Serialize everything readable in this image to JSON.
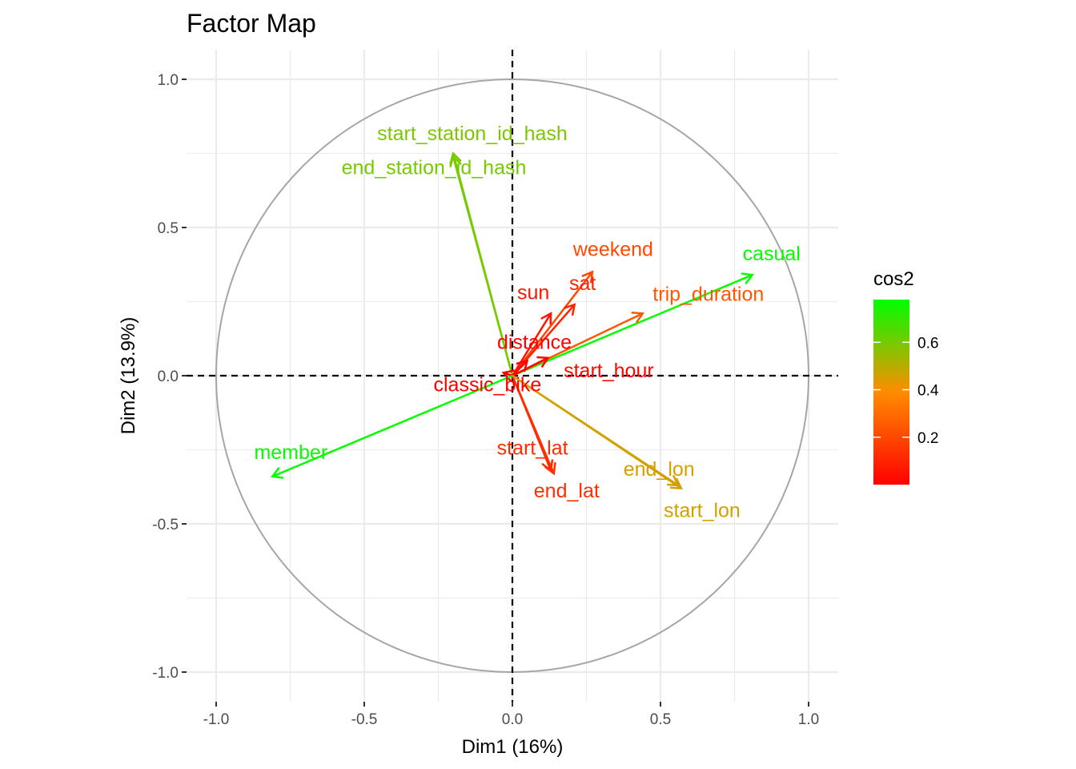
{
  "chart_data": {
    "type": "scatter",
    "subtype": "pca-variable-correlation-circle",
    "title": "Factor Map",
    "xlabel": "Dim1 (16%)",
    "ylabel": "Dim2 (13.9%)",
    "xlim": [
      -1.1,
      1.1
    ],
    "ylim": [
      -1.1,
      1.1
    ],
    "x_ticks": [
      "-1.0",
      "-0.5",
      "0.0",
      "0.5",
      "1.0"
    ],
    "y_ticks": [
      "-1.0",
      "-0.5",
      "0.0",
      "0.5",
      "1.0"
    ],
    "grid": true,
    "unit_circle": true,
    "reference_lines": [
      0,
      0
    ],
    "legend": {
      "title": "cos2",
      "position": "right",
      "ticks": [
        "0.2",
        "0.4",
        "0.6"
      ],
      "range": [
        0.0,
        0.78
      ],
      "low_color": "#ff0000",
      "mid_color": "#ff8c00",
      "high_color": "#00ff00"
    },
    "variables": [
      {
        "name": "start_station_id_hash",
        "x": -0.2,
        "y": 0.74,
        "cos2": 0.59
      },
      {
        "name": "end_station_id_hash",
        "x": -0.2,
        "y": 0.75,
        "cos2": 0.6
      },
      {
        "name": "weekend",
        "x": 0.27,
        "y": 0.35,
        "cos2": 0.2
      },
      {
        "name": "casual",
        "x": 0.81,
        "y": 0.34,
        "cos2": 0.77
      },
      {
        "name": "sun",
        "x": 0.13,
        "y": 0.21,
        "cos2": 0.06
      },
      {
        "name": "sat",
        "x": 0.21,
        "y": 0.24,
        "cos2": 0.1
      },
      {
        "name": "trip_duration",
        "x": 0.44,
        "y": 0.21,
        "cos2": 0.24
      },
      {
        "name": "start_hour",
        "x": 0.12,
        "y": 0.06,
        "cos2": 0.02
      },
      {
        "name": "distance",
        "x": 0.05,
        "y": 0.05,
        "cos2": 0.005
      },
      {
        "name": "classic_bike",
        "x": -0.03,
        "y": 0.01,
        "cos2": 0.001
      },
      {
        "name": "member",
        "x": -0.81,
        "y": -0.34,
        "cos2": 0.77
      },
      {
        "name": "start_lat",
        "x": 0.13,
        "y": -0.32,
        "cos2": 0.12
      },
      {
        "name": "end_lat",
        "x": 0.14,
        "y": -0.33,
        "cos2": 0.13
      },
      {
        "name": "end_lon",
        "x": 0.56,
        "y": -0.37,
        "cos2": 0.45
      },
      {
        "name": "start_lon",
        "x": 0.57,
        "y": -0.38,
        "cos2": 0.46
      }
    ]
  }
}
